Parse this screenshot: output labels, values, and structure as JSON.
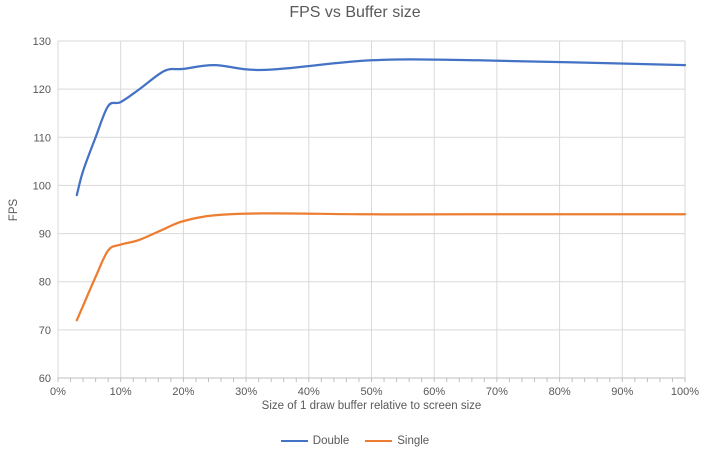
{
  "chart_data": {
    "type": "line",
    "title": "FPS vs Buffer size",
    "xlabel": "Size of 1 draw buffer relative to screen size",
    "ylabel": "FPS",
    "xlim": [
      0,
      100
    ],
    "ylim": [
      60,
      130
    ],
    "x_tick_values": [
      0,
      10,
      20,
      30,
      40,
      50,
      60,
      70,
      80,
      90,
      100
    ],
    "x_tick_labels": [
      "0%",
      "10%",
      "20%",
      "30%",
      "40%",
      "50%",
      "60%",
      "70%",
      "80%",
      "90%",
      "100%"
    ],
    "x_minor_tick_step": 2,
    "y_tick_values": [
      60,
      70,
      80,
      90,
      100,
      110,
      120,
      130
    ],
    "grid": true,
    "legend_position": "bottom",
    "colors": {
      "gridline": "#d9d9d9",
      "axis_line": "#bfbfbf",
      "text": "#595959",
      "double": "#4472c4",
      "single": "#ed7d31"
    },
    "series": [
      {
        "name": "Double",
        "color": "#4472c4",
        "points": [
          [
            3,
            98
          ],
          [
            4,
            103
          ],
          [
            6,
            110
          ],
          [
            8,
            116.5
          ],
          [
            10,
            117.3
          ],
          [
            13,
            120
          ],
          [
            17,
            123.8
          ],
          [
            20,
            124.2
          ],
          [
            25,
            125
          ],
          [
            33,
            124
          ],
          [
            50,
            126
          ],
          [
            67,
            126
          ],
          [
            100,
            125
          ]
        ]
      },
      {
        "name": "Single",
        "color": "#ed7d31",
        "points": [
          [
            3,
            72
          ],
          [
            4,
            75
          ],
          [
            6,
            81
          ],
          [
            8,
            86.5
          ],
          [
            10,
            87.7
          ],
          [
            13,
            88.7
          ],
          [
            17,
            91
          ],
          [
            20,
            92.6
          ],
          [
            25,
            93.8
          ],
          [
            33,
            94.2
          ],
          [
            50,
            94
          ],
          [
            67,
            94
          ],
          [
            100,
            94
          ]
        ]
      }
    ]
  }
}
